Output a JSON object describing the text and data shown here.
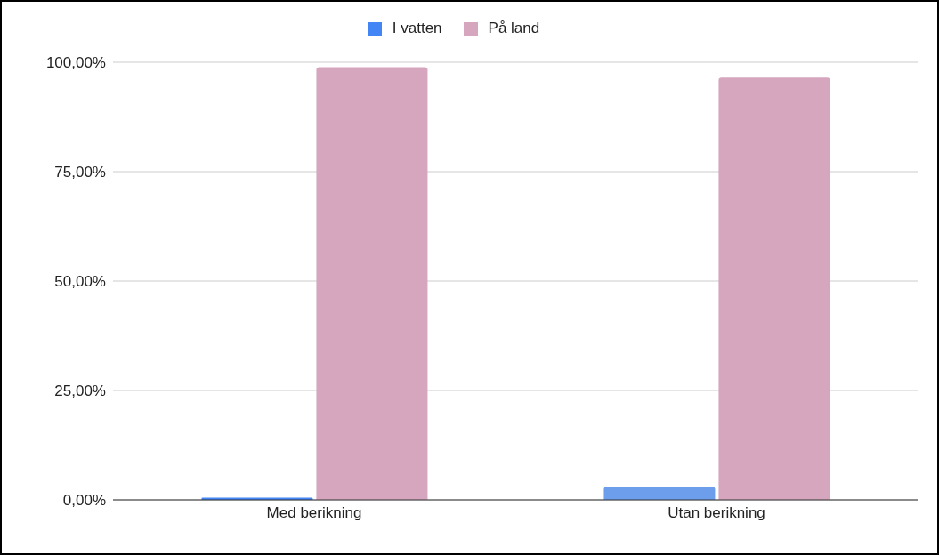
{
  "chart_data": {
    "type": "bar",
    "categories": [
      "Med berikning",
      "Utan berikning"
    ],
    "series": [
      {
        "name": "I vatten",
        "color": "#4285f4",
        "colors": [
          "#4285f4",
          "#6d9eeb"
        ],
        "values": [
          0.5,
          3.0
        ]
      },
      {
        "name": "På land",
        "color": "#d5a6bd",
        "values": [
          98.9,
          96.5
        ]
      }
    ],
    "ylim": [
      0,
      100
    ],
    "yticks": [
      {
        "value": 0,
        "label": "0,00%"
      },
      {
        "value": 25,
        "label": "25,00%"
      },
      {
        "value": 50,
        "label": "50,00%"
      },
      {
        "value": 75,
        "label": "75,00%"
      },
      {
        "value": 100,
        "label": "100,00%"
      }
    ],
    "grid": "y",
    "legend": "top"
  }
}
